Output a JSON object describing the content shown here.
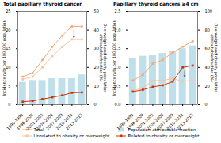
{
  "chart_data": [
    {
      "type": "combo",
      "title": "Total papillary thyroid cancer",
      "categories": [
        "1990-1992",
        "1996-2000",
        "2001-2003",
        "2004-2006",
        "2007-2009",
        "2010-2012",
        "2013-2015"
      ],
      "ylabel": "Incidence rate per 100,000 population",
      "y2label": "Overweight and obesity population\nattributable fraction (%)",
      "ylim": [
        0,
        25
      ],
      "yticks": [
        0,
        5,
        10,
        15,
        20,
        25
      ],
      "y2lim": [
        0,
        50
      ],
      "y2ticks": [
        0,
        10,
        20,
        30,
        40,
        50
      ],
      "grid": false,
      "legend": "bottom",
      "series": [
        {
          "name": "Total",
          "type": "line",
          "marker": "circle",
          "color": "#f5a875",
          "values": [
            7.5,
            8.5,
            12.0,
            15.5,
            18.5,
            21.0,
            21.0
          ]
        },
        {
          "name": "Unrelated to obesity or overweight",
          "type": "line",
          "marker": "square",
          "color": "#f5c4a0",
          "values": [
            6.8,
            7.5,
            10.0,
            13.0,
            15.5,
            17.5,
            17.5
          ]
        },
        {
          "name": "Population attributable fraction",
          "type": "bar",
          "axis": "y2",
          "color": "#b8dde8",
          "values": [
            12,
            13,
            13,
            14,
            14,
            14,
            16
          ]
        },
        {
          "name": "Related to obesity or overweight",
          "type": "line",
          "marker": "square",
          "color": "#cc3300",
          "values": [
            0.8,
            1.0,
            1.5,
            2.0,
            2.5,
            3.2,
            3.3
          ]
        }
      ],
      "annotations": [
        {
          "type": "arrow",
          "x": 5.2,
          "y": 40,
          "y_end": 36,
          "axis": "y2",
          "color": "#333333"
        }
      ]
    },
    {
      "type": "combo",
      "title": "Papillary thyroid cancers ≥4 cm",
      "categories": [
        "1990-1992",
        "1996-2000",
        "2001-2003",
        "2004-2006",
        "2007-2009",
        "2010-2012",
        "2013-2015"
      ],
      "ylabel": "Incidence rate per 100,000 population",
      "y2label": "Overweight and obesity population\nattributable fraction (%)",
      "ylim": [
        0,
        2.5
      ],
      "yticks": [
        {
          "value": 0,
          "label": "0.0"
        },
        {
          "value": 0.5,
          "label": "0.5"
        },
        {
          "value": 1,
          "label": "1.0"
        },
        {
          "value": 1.5,
          "label": "1.5"
        },
        {
          "value": 2,
          "label": "2.0"
        },
        {
          "value": 2.5,
          "label": "2.5"
        }
      ],
      "y2lim": [
        0,
        100
      ],
      "y2ticks": [
        0,
        20,
        40,
        60,
        80,
        100
      ],
      "grid": false,
      "legend": "bottom",
      "series": [
        {
          "name": "Total",
          "type": "line",
          "marker": "circle",
          "color": "#f5a875",
          "values": [
            0.65,
            0.8,
            1.1,
            1.2,
            1.4,
            1.55,
            1.7
          ]
        },
        {
          "name": "Unrelated to obesity or overweight",
          "type": "line",
          "marker": "square",
          "color": "#f5c4a0",
          "values": [
            0.38,
            0.45,
            0.65,
            0.65,
            0.7,
            0.63,
            0.65
          ]
        },
        {
          "name": "Population attributable fraction",
          "type": "bar",
          "axis": "y2",
          "color": "#b8dde8",
          "values": [
            50,
            52,
            53,
            55,
            57,
            60,
            63
          ]
        },
        {
          "name": "Related to obesity or overweight",
          "type": "line",
          "marker": "square",
          "color": "#cc3300",
          "values": [
            0.35,
            0.4,
            0.48,
            0.52,
            0.62,
            1.0,
            1.05
          ]
        }
      ],
      "annotations": [
        {
          "type": "arrow",
          "x": 5.2,
          "y": 36,
          "y_end": 30,
          "axis": "y2",
          "color": "#333333"
        }
      ]
    }
  ]
}
